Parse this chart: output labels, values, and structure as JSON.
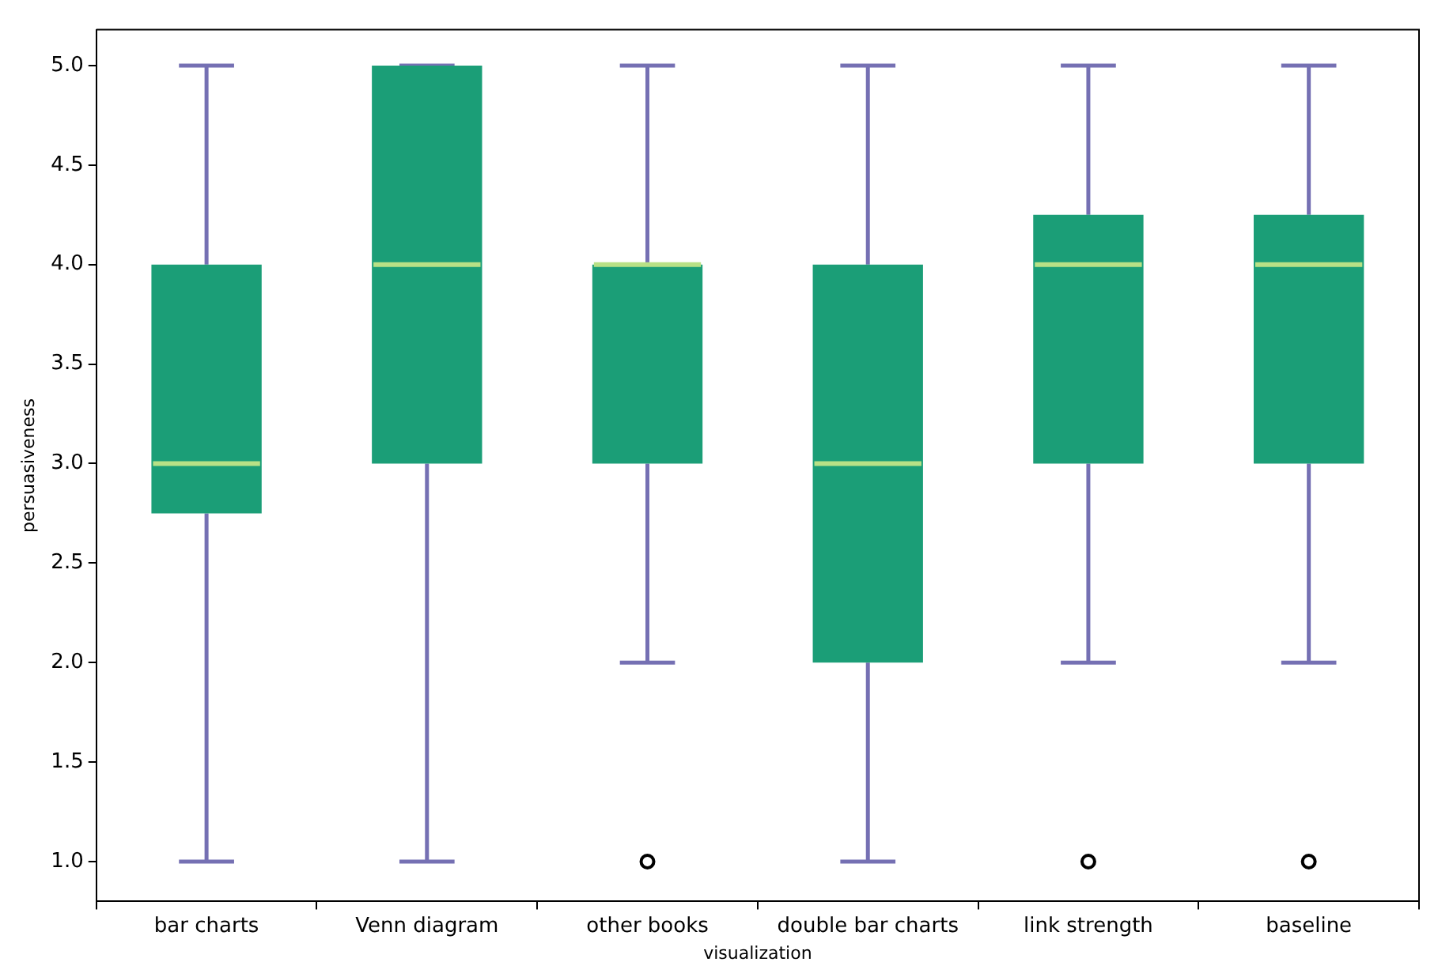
{
  "chart_data": {
    "type": "box",
    "xlabel": "visualization",
    "ylabel": "persuasiveness",
    "categories": [
      "bar charts",
      "Venn diagram",
      "other books",
      "double bar charts",
      "link strength",
      "baseline"
    ],
    "ylim": [
      0.8,
      5.18
    ],
    "yticks": [
      {
        "value": 1,
        "label": "1.0"
      },
      {
        "value": 1.5,
        "label": "1.5"
      },
      {
        "value": 2,
        "label": "2.0"
      },
      {
        "value": 2.5,
        "label": "2.5"
      },
      {
        "value": 3,
        "label": "3.0"
      },
      {
        "value": 3.5,
        "label": "3.5"
      },
      {
        "value": 4,
        "label": "4.0"
      },
      {
        "value": 4.5,
        "label": "4.5"
      },
      {
        "value": 5,
        "label": "5.0"
      }
    ],
    "series": [
      {
        "color": "#1b9e77",
        "boxes": [
          {
            "low": 1,
            "q1": 2.75,
            "median": 3,
            "q3": 4,
            "high": 5
          },
          {
            "low": 1,
            "q1": 3,
            "median": 4,
            "q3": 5,
            "high": 5
          },
          {
            "low": 2,
            "q1": 3,
            "median": 4,
            "q3": 4,
            "high": 5,
            "outliers": [
              1
            ]
          },
          {
            "low": 1,
            "q1": 2,
            "median": 3,
            "q3": 4,
            "high": 5
          },
          {
            "low": 2,
            "q1": 3,
            "median": 4,
            "q3": 4.25,
            "high": 5,
            "outliers": [
              1
            ]
          },
          {
            "low": 2,
            "q1": 3,
            "median": 4,
            "q3": 4.25,
            "high": 5,
            "outliers": [
              1
            ]
          }
        ]
      }
    ]
  }
}
